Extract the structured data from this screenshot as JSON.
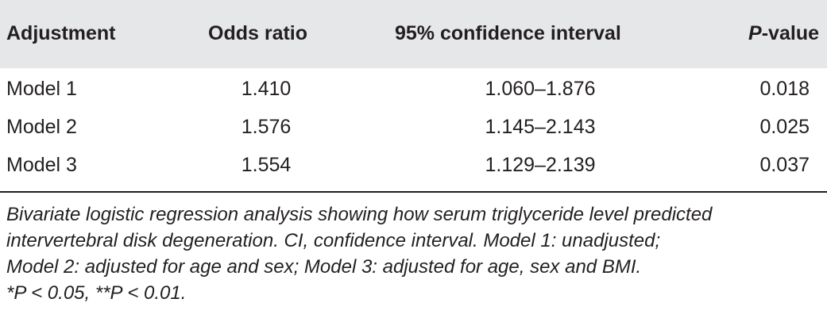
{
  "table": {
    "headers": {
      "adjustment": "Adjustment",
      "odds_ratio": "Odds ratio",
      "ci": "95% confidence interval",
      "p_italic": "P",
      "p_rest": "-value"
    },
    "rows": [
      {
        "adjustment": "Model 1",
        "odds_ratio": "1.410",
        "ci": "1.060–1.876",
        "p_value": "0.018"
      },
      {
        "adjustment": "Model 2",
        "odds_ratio": "1.576",
        "ci": "1.145–2.143",
        "p_value": "0.025"
      },
      {
        "adjustment": "Model 3",
        "odds_ratio": "1.554",
        "ci": "1.129–2.139",
        "p_value": "0.037"
      }
    ]
  },
  "caption": {
    "line1": "Bivariate logistic regression analysis showing how serum triglyceride level predicted",
    "line2": "intervertebral disk degeneration. CI, confidence interval. Model 1: unadjusted;",
    "line3": "Model 2: adjusted for age and sex; Model 3: adjusted for age, sex and BMI.",
    "line4": "*P < 0.05, **P < 0.01."
  },
  "colors": {
    "header_background": "#e6e7e8",
    "text": "#231f20",
    "rule": "#231f20"
  }
}
